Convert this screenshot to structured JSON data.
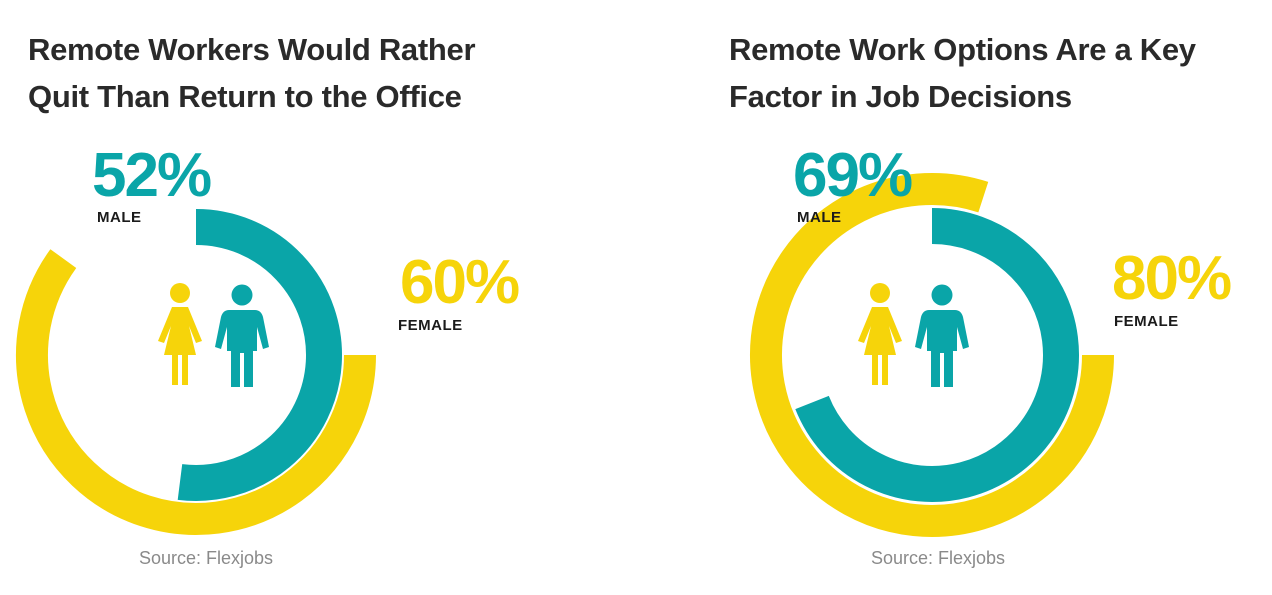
{
  "colors": {
    "male": "#0aa5a8",
    "female": "#f6d40a",
    "title": "#2a2a2a",
    "label": "#1b1b1b",
    "source": "#8a8a8a"
  },
  "icons": [
    "female-figure-icon",
    "male-figure-icon"
  ],
  "chart_data": [
    {
      "type": "radial-bar",
      "title": "Remote Workers Would Rather Quit Than Return to the Office",
      "source": "Source: Flexjobs",
      "unit": "%",
      "series": [
        {
          "label": "MALE",
          "display": "52%",
          "value": 52
        },
        {
          "label": "FEMALE",
          "display": "60%",
          "value": 60
        }
      ]
    },
    {
      "type": "radial-bar",
      "title": "Remote Work Options Are a Key Factor in Job Decisions",
      "source": "Source: Flexjobs",
      "unit": "%",
      "series": [
        {
          "label": "MALE",
          "display": "69%",
          "value": 69
        },
        {
          "label": "FEMALE",
          "display": "80%",
          "value": 80
        }
      ]
    }
  ]
}
